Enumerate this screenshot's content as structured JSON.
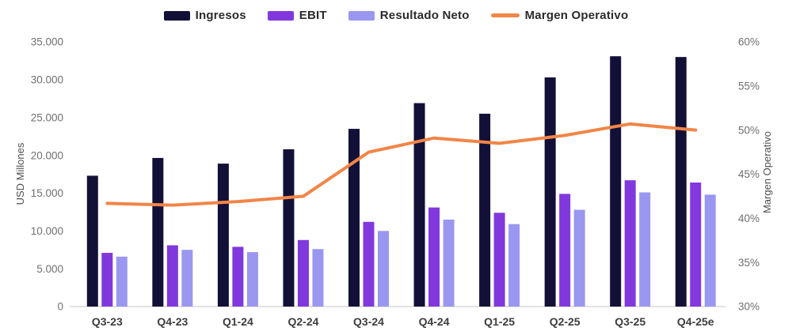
{
  "chart_data": {
    "type": "bar",
    "subtype": "grouped-bars-with-line-overlay",
    "title": "",
    "categories": [
      "Q3-23",
      "Q4-23",
      "Q1-24",
      "Q2-24",
      "Q3-24",
      "Q4-24",
      "Q1-25",
      "Q2-25",
      "Q3-25",
      "Q4-25e"
    ],
    "series": [
      {
        "name": "Ingresos",
        "type": "bar",
        "axis": "left",
        "color": "#131038",
        "values": [
          17300,
          19650,
          18900,
          20800,
          23500,
          26900,
          25500,
          30300,
          33100,
          33000
        ]
      },
      {
        "name": "EBIT",
        "type": "bar",
        "axis": "left",
        "color": "#8138DD",
        "values": [
          7100,
          8100,
          7900,
          8800,
          11200,
          13100,
          12400,
          14900,
          16700,
          16400
        ]
      },
      {
        "name": "Resultado Neto",
        "type": "bar",
        "axis": "left",
        "color": "#9A97F0",
        "values": [
          6600,
          7500,
          7200,
          7600,
          10000,
          11500,
          10900,
          12800,
          15100,
          14800
        ]
      },
      {
        "name": "Margen Operativo",
        "type": "line",
        "axis": "right",
        "color": "#F28547",
        "values": [
          41.7,
          41.5,
          41.9,
          42.5,
          47.5,
          49.1,
          48.5,
          49.4,
          50.7,
          50.0
        ]
      }
    ],
    "left_axis": {
      "label": "USD Millones",
      "min": 0,
      "max": 35000,
      "step": 5000,
      "tick_labels": [
        "0",
        "5.000",
        "10.000",
        "15.000",
        "20.000",
        "25.000",
        "30.000",
        "35.000"
      ]
    },
    "right_axis": {
      "label": "Margen Operativo",
      "min": 30,
      "max": 60,
      "step": 5,
      "tick_labels": [
        "30%",
        "35%",
        "40%",
        "45%",
        "50%",
        "55%",
        "60%"
      ]
    },
    "legend": [
      "Ingresos",
      "EBIT",
      "Resultado Neto",
      "Margen Operativo"
    ],
    "legend_position": "top",
    "grid": false,
    "axis_line_color": "#d8d8d8"
  }
}
